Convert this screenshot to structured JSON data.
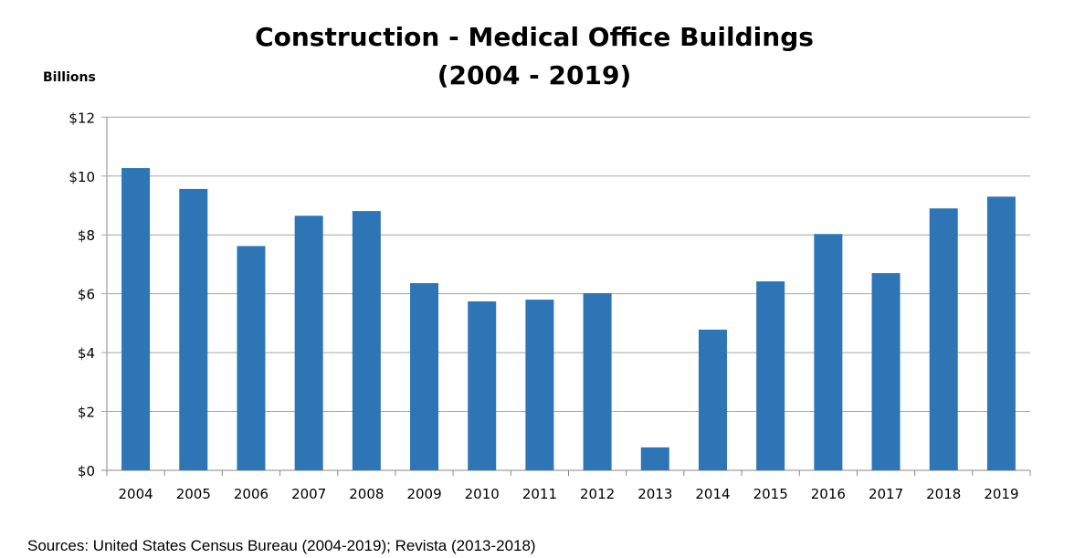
{
  "chart_data": {
    "type": "bar",
    "title": "Construction - Medical Office Buildings",
    "subtitle": "(2004 - 2019)",
    "ylabel": "Billions",
    "xlabel": "",
    "categories": [
      "2004",
      "2005",
      "2006",
      "2007",
      "2008",
      "2009",
      "2010",
      "2011",
      "2012",
      "2013",
      "2014",
      "2015",
      "2016",
      "2017",
      "2018",
      "2019"
    ],
    "values": [
      10.27,
      9.56,
      7.62,
      8.65,
      8.81,
      6.36,
      5.74,
      5.8,
      6.02,
      0.78,
      4.78,
      6.42,
      8.03,
      6.7,
      8.9,
      9.3
    ],
    "ylim": [
      0,
      12
    ],
    "yticks": [
      "$0",
      "$2",
      "$4",
      "$6",
      "$8",
      "$10",
      "$12"
    ],
    "grid": true,
    "bar_color": "#2E75B6",
    "source": "Sources: United States Census Bureau  (2004-2019); Revista (2013-2018)"
  }
}
